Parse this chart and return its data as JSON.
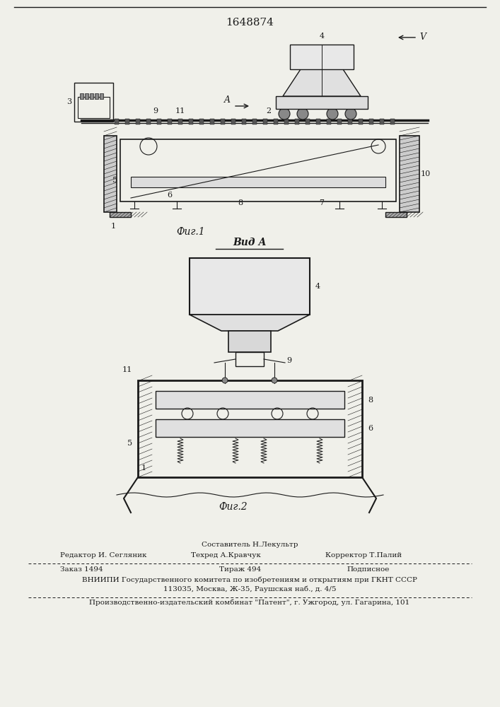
{
  "patent_number": "1648874",
  "fig1_caption": "Фиг.1",
  "fig2_caption": "Фиг.2",
  "fig2_label": "Вид А",
  "bg_color": "#f0f0ea",
  "line_color": "#1a1a1a",
  "footer": {
    "editor_label": "Редактор И. Сегляник",
    "composer_label": "Составитель Н.Лекультр",
    "techred_label": "Техред А.Кравчук",
    "corrector_label": "Корректор Т.Палий",
    "order_label": "Заказ 1494",
    "tirazh_label": "Тираж 494",
    "podpisnoe_label": "Подписное",
    "vnipi_line1": "ВНИИПИ Государственного комитета по изобретениям и открытиям при ГКНТ СССР",
    "vnipi_line2": "113035, Москва, Ж-35, Раушская наб., д. 4/5",
    "factory_line": "Производственно-издательский комбинат \"Патент\", г. Ужгород, ул. Гагарина, 101"
  }
}
